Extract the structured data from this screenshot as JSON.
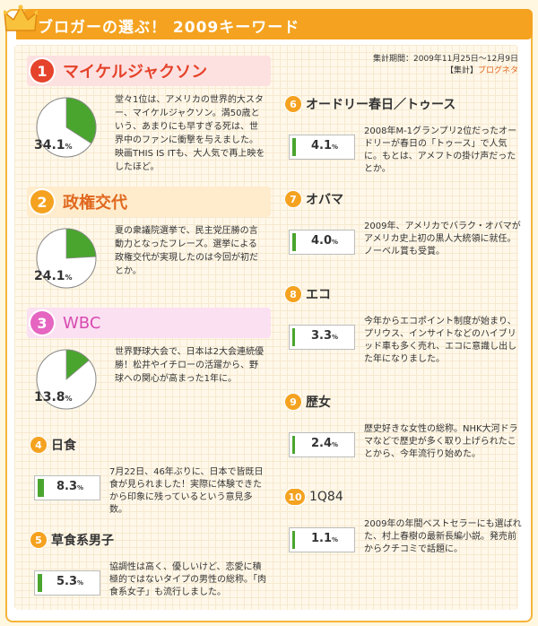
{
  "header": {
    "title": "ブロガーの選ぶ！ 2009キーワード",
    "crown_icon": "crown-icon",
    "accent": "#f4a21f"
  },
  "meta": {
    "period": "集計期間：2009年11月25日～12月9日",
    "source_prefix": "【集計】",
    "source_link": "ブログネタ"
  },
  "colors": {
    "pie_fill": "#4aa52e",
    "bar_fill": "#4aa52e",
    "rank1": "#e5432b",
    "rank2": "#f4a21f",
    "rank3": "#e565c0"
  },
  "big_entries": [
    {
      "rank": "1",
      "label": "マイケルジャクソン",
      "percent": "34.1",
      "percent_value": 34.1,
      "unit": "%",
      "desc": "堂々1位は、アメリカの世界的大スター、マイケルジャクソン。満50歳という、あまりにも早すぎる死は、世界中のファンに衝撃を与えました。映画THIS IS ITも、大人気で再上映をしたほど。"
    },
    {
      "rank": "2",
      "label": "政権交代",
      "percent": "24.1",
      "percent_value": 24.1,
      "unit": "%",
      "desc": "夏の衆議院選挙で、民主党圧勝の言動力となったフレーズ。選挙による政権交代が実現したのは今回が初だとか。"
    },
    {
      "rank": "3",
      "label": "WBC",
      "percent": "13.8",
      "percent_value": 13.8,
      "unit": "%",
      "desc": "世界野球大会で、日本は2大会連続優勝！松井やイチローの活躍から、野球への関心が高まった1年に。"
    }
  ],
  "small_entries": [
    {
      "rank": "4",
      "label": "日食",
      "percent": "8.3",
      "percent_value": 8.3,
      "unit": "%",
      "desc": "7月22日、46年ぶりに、日本で皆既日食が見られました！実際に体験できたから印象に残っているという意見多数。"
    },
    {
      "rank": "5",
      "label": "草食系男子",
      "percent": "5.3",
      "percent_value": 5.3,
      "unit": "%",
      "desc": "協調性は高く、優しいけど、恋愛に積極的ではないタイプの男性の総称。「肉食系女子」も流行しました。"
    },
    {
      "rank": "6",
      "label": "オードリー春日／トゥース",
      "percent": "4.1",
      "percent_value": 4.1,
      "unit": "%",
      "desc": "2008年M-1グランプリ2位だったオードリーが春日の「トゥース」で人気に。もとは、アメフトの掛け声だったとか。"
    },
    {
      "rank": "7",
      "label": "オバマ",
      "percent": "4.0",
      "percent_value": 4.0,
      "unit": "%",
      "desc": "2009年、アメリカでバラク・オバマがアメリカ史上初の黒人大統領に就任。ノーベル賞も受賞。"
    },
    {
      "rank": "8",
      "label": "エコ",
      "percent": "3.3",
      "percent_value": 3.3,
      "unit": "%",
      "desc": "今年からエコポイント制度が始まり、プリウス、インサイトなどのハイブリッド車も多く売れ、エコに意識し出した年になりました。"
    },
    {
      "rank": "9",
      "label": "歴女",
      "percent": "2.4",
      "percent_value": 2.4,
      "unit": "%",
      "desc": "歴史好きな女性の総称。NHK大河ドラマなどで歴史が多く取り上げられたことから、今年流行り始めた。"
    },
    {
      "rank": "10",
      "label": "1Q84",
      "percent": "1.1",
      "percent_value": 1.1,
      "unit": "%",
      "desc": "2009年の年間ベストセラーにも選ばれた、村上春樹の最新長編小説。発売前からクチコミで話題に。"
    }
  ]
}
